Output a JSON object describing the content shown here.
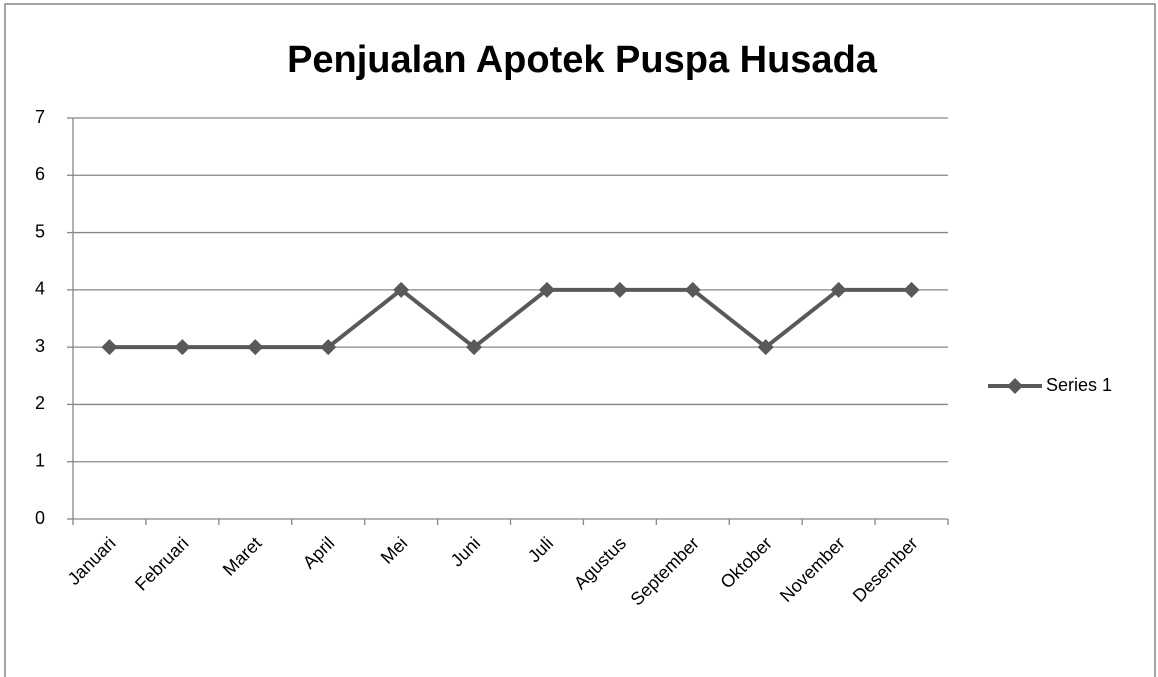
{
  "chart_data": {
    "type": "line",
    "title": "Penjualan Apotek Puspa Husada",
    "categories": [
      "Januari",
      "Februari",
      "Maret",
      "April",
      "Mei",
      "Juni",
      "Juli",
      "Agustus",
      "September",
      "Oktober",
      "November",
      "Desember"
    ],
    "series": [
      {
        "name": "Series 1",
        "color": "#595959",
        "values": [
          3,
          3,
          3,
          3,
          4,
          3,
          4,
          4,
          4,
          3,
          4,
          4
        ]
      }
    ],
    "ylim": [
      0,
      7
    ],
    "yticks": [
      0,
      1,
      2,
      3,
      4,
      5,
      6,
      7
    ],
    "grid": true,
    "legend": "right",
    "marker": "diamond"
  }
}
